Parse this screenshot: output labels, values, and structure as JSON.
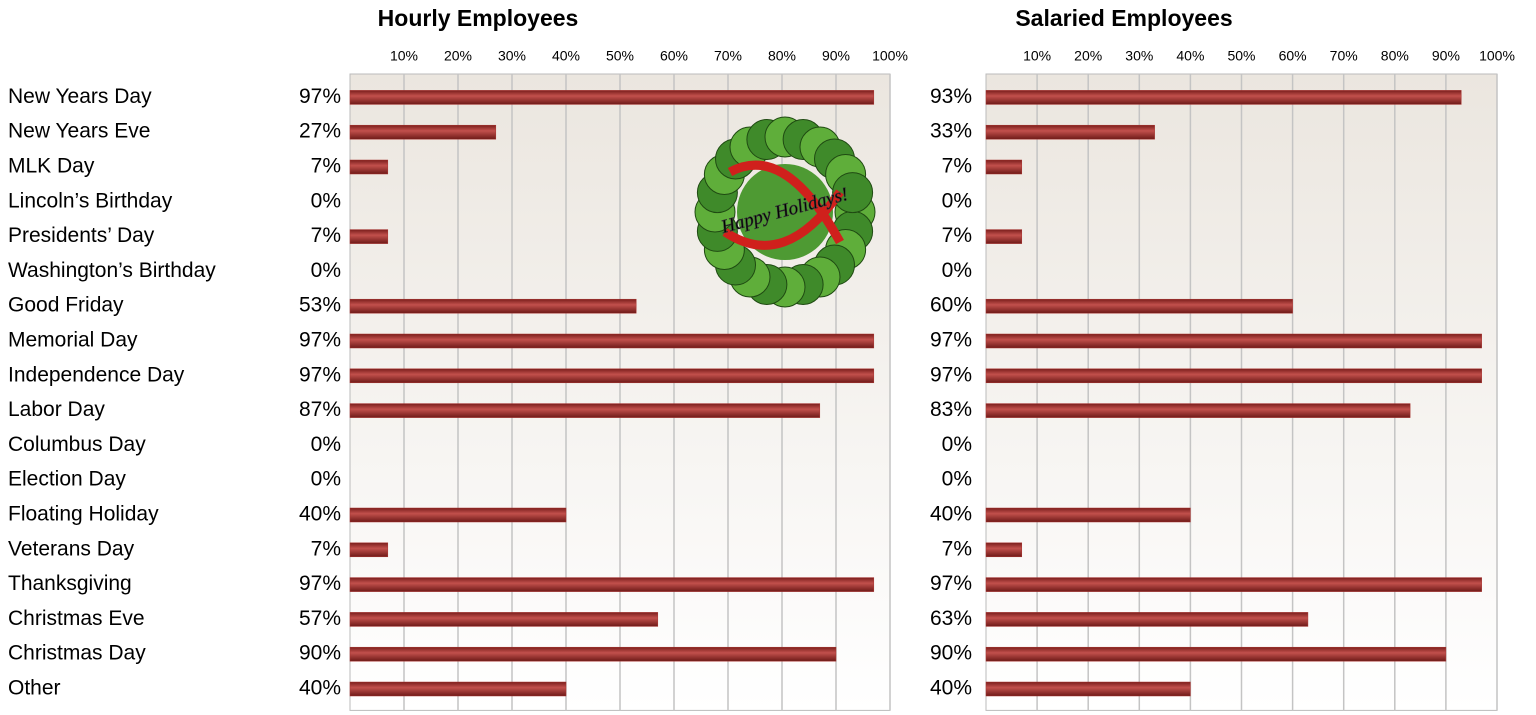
{
  "chart_data": [
    {
      "type": "bar",
      "orientation": "horizontal",
      "title": "Hourly Employees",
      "categories": [
        "New Years Day",
        "New Years Eve",
        "MLK Day",
        "Lincoln’s Birthday",
        "Presidents’ Day",
        "Washington’s Birthday",
        "Good Friday",
        "Memorial Day",
        "Independence Day",
        "Labor Day",
        "Columbus Day",
        "Election Day",
        "Floating Holiday",
        "Veterans Day",
        "Thanksgiving",
        "Christmas Eve",
        "Christmas Day",
        "Other"
      ],
      "values": [
        97,
        27,
        7,
        0,
        7,
        0,
        53,
        97,
        97,
        87,
        0,
        0,
        40,
        7,
        97,
        57,
        90,
        40
      ],
      "value_labels": [
        "97%",
        "27%",
        "7%",
        "0%",
        "7%",
        "0%",
        "53%",
        "97%",
        "97%",
        "87%",
        "0%",
        "0%",
        "40%",
        "7%",
        "97%",
        "57%",
        "90%",
        "40%"
      ],
      "color": "#a8322f",
      "xlim": [
        0,
        100
      ],
      "xticks": [
        {
          "value": 10,
          "label": "10%"
        },
        {
          "value": 20,
          "label": "20%"
        },
        {
          "value": 30,
          "label": "30%"
        },
        {
          "value": 40,
          "label": "40%"
        },
        {
          "value": 50,
          "label": "50%"
        },
        {
          "value": 60,
          "label": "60%"
        },
        {
          "value": 70,
          "label": "70%"
        },
        {
          "value": 80,
          "label": "80%"
        },
        {
          "value": 90,
          "label": "90%"
        },
        {
          "value": 100,
          "label": "100%"
        }
      ],
      "grid": true,
      "annotation": "Happy Holidays!"
    },
    {
      "type": "bar",
      "orientation": "horizontal",
      "title": "Salaried Employees",
      "values": [
        93,
        33,
        7,
        0,
        7,
        0,
        60,
        97,
        97,
        83,
        0,
        0,
        40,
        7,
        97,
        63,
        90,
        40
      ],
      "value_labels": [
        "93%",
        "33%",
        "7%",
        "0%",
        "7%",
        "0%",
        "60%",
        "97%",
        "97%",
        "83%",
        "0%",
        "0%",
        "40%",
        "7%",
        "97%",
        "63%",
        "90%",
        "40%"
      ],
      "color": "#a8322f",
      "xlim": [
        0,
        100
      ],
      "xticks": [
        {
          "value": 10,
          "label": "10%"
        },
        {
          "value": 20,
          "label": "20%"
        },
        {
          "value": 30,
          "label": "30%"
        },
        {
          "value": 40,
          "label": "40%"
        },
        {
          "value": 50,
          "label": "50%"
        },
        {
          "value": 60,
          "label": "60%"
        },
        {
          "value": 70,
          "label": "70%"
        },
        {
          "value": 80,
          "label": "80%"
        },
        {
          "value": 90,
          "label": "90%"
        },
        {
          "value": 100,
          "label": "100%"
        }
      ],
      "grid": true
    }
  ]
}
